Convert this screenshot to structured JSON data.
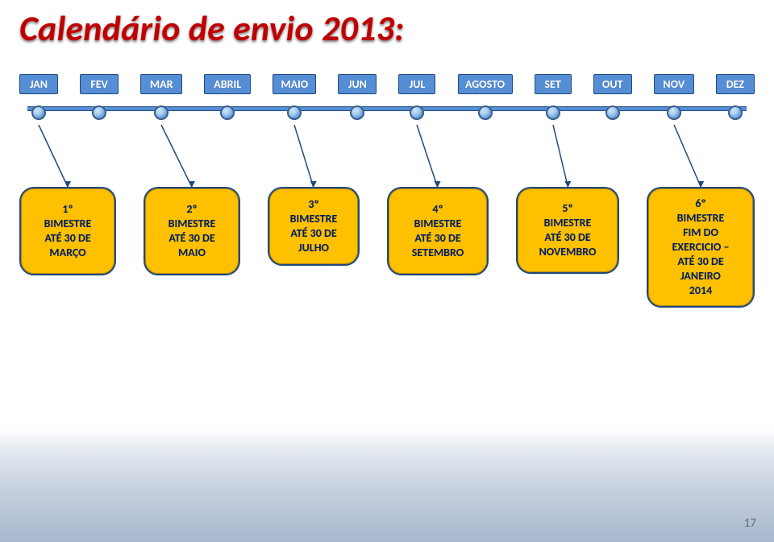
{
  "title": "Calendário de envio 2013:",
  "months": [
    {
      "label": "JAN",
      "width": 48
    },
    {
      "label": "FEV",
      "width": 48
    },
    {
      "label": "MAR",
      "width": 52
    },
    {
      "label": "ABRIL",
      "width": 58
    },
    {
      "label": "MAIO",
      "width": 54
    },
    {
      "label": "JUN",
      "width": 48
    },
    {
      "label": "JUL",
      "width": 46
    },
    {
      "label": "AGOSTO",
      "width": 68
    },
    {
      "label": "SET",
      "width": 46
    },
    {
      "label": "OUT",
      "width": 48
    },
    {
      "label": "NOV",
      "width": 50
    },
    {
      "label": "DEZ",
      "width": 48
    }
  ],
  "connectors": [
    {
      "month_index": 0,
      "bimestre_index": 0
    },
    {
      "month_index": 2,
      "bimestre_index": 1
    },
    {
      "month_index": 4,
      "bimestre_index": 2
    },
    {
      "month_index": 6,
      "bimestre_index": 3
    },
    {
      "month_index": 8,
      "bimestre_index": 4
    },
    {
      "month_index": 10,
      "bimestre_index": 5
    }
  ],
  "bimestres": [
    {
      "lines": [
        "1º",
        "BIMESTRE",
        "ATÉ 30 DE",
        "MARÇO"
      ],
      "width": 120,
      "height": 110
    },
    {
      "lines": [
        "2º",
        "BIMESTRE",
        "ATÉ 30 DE",
        "MAIO"
      ],
      "width": 120,
      "height": 110
    },
    {
      "lines": [
        "3º",
        "BIMESTRE",
        "ATÉ 30 DE",
        "JULHO"
      ],
      "width": 114,
      "height": 98
    },
    {
      "lines": [
        "4º",
        "BIMESTRE",
        "ATÉ 30 DE",
        "SETEMBRO"
      ],
      "width": 126,
      "height": 110
    },
    {
      "lines": [
        "5º",
        "BIMESTRE",
        "ATÉ 30 DE",
        "NOVEMBRO"
      ],
      "width": 128,
      "height": 108
    },
    {
      "lines": [
        "6º",
        "BIMESTRE",
        "FIM DO",
        "EXERCICIO –",
        "ATÉ 30 DE",
        "JANEIRO",
        "2014"
      ],
      "width": 134,
      "height": 150
    }
  ],
  "page_number": "17",
  "colors": {
    "title_color": "#c00000",
    "timeline_fill": "#558ed5",
    "timeline_border": "#1f497d",
    "month_text": "#ffffff",
    "bimestre_fill": "#ffc000",
    "bimestre_border": "#1f497d",
    "bimestre_text": "#002060",
    "connector_stroke": "#1f497d",
    "node_border": "#385d8a"
  }
}
